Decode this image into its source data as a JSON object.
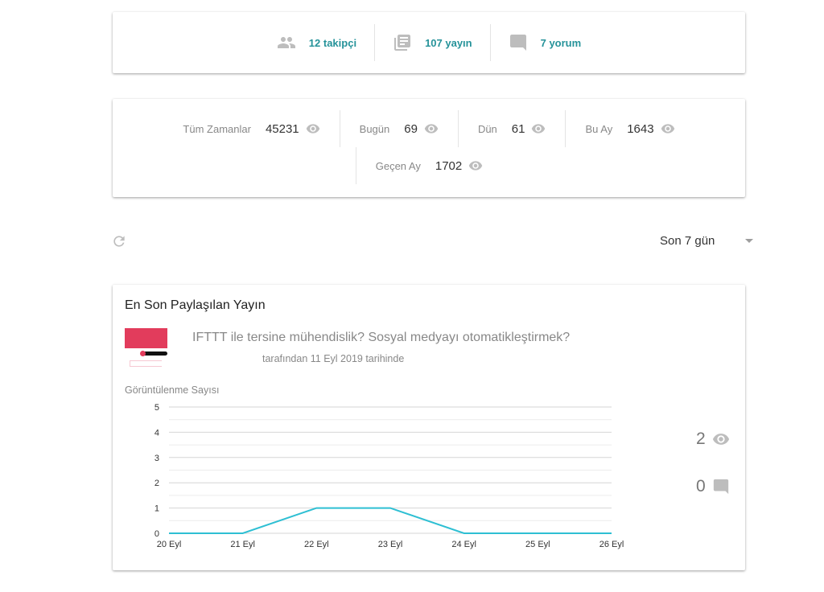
{
  "profile": {
    "followers": "12 takipçi",
    "posts": "107 yayın",
    "comments": "7 yorum"
  },
  "views": [
    {
      "label": "Tüm Zamanlar",
      "value": "45231"
    },
    {
      "label": "Bugün",
      "value": "69"
    },
    {
      "label": "Dün",
      "value": "61"
    },
    {
      "label": "Bu Ay",
      "value": "1643"
    },
    {
      "label": "Geçen Ay",
      "value": "1702"
    }
  ],
  "filter": {
    "selected": "Son 7 gün"
  },
  "latest": {
    "heading": "En Son Paylaşılan Yayın",
    "title": "IFTTT ile tersine mühendislik? Sosyal medyayı otomatikleştirmek?",
    "meta": "tarafından 11 Eyl 2019 tarihinde",
    "view_count": "2",
    "comment_count": "0"
  },
  "chart_data": {
    "type": "line",
    "ylabel": "Görüntülenme Sayısı",
    "categories": [
      "20 Eyl",
      "21 Eyl",
      "22 Eyl",
      "23 Eyl",
      "24 Eyl",
      "25 Eyl",
      "26 Eyl"
    ],
    "values": [
      0,
      0,
      1,
      1,
      0,
      0,
      0
    ],
    "ylim": [
      0,
      5
    ],
    "yticks": [
      "0",
      "1",
      "2",
      "3",
      "4",
      "5"
    ],
    "grid": true,
    "color": "#2ebfd3"
  }
}
